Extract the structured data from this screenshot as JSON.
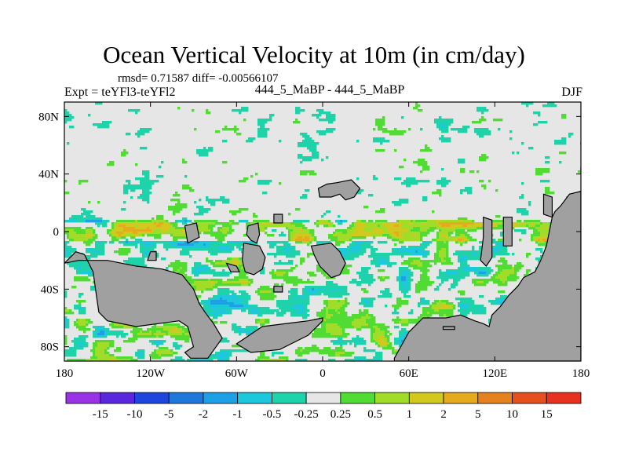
{
  "header": {
    "title": "Ocean Vertical Velocity at 10m (in cm/day)",
    "stats": "rmsd= 0.71587 diff= -0.00566107",
    "experiment": "Expt = teYFl3-teYFl2",
    "center_label": "444_5_MaBP - 444_5_MaBP",
    "season": "DJF"
  },
  "chart_data": {
    "type": "heatmap",
    "title": "Ocean Vertical Velocity at 10m (in cm/day)",
    "xlabel": "",
    "ylabel": "",
    "xlim": [
      -180,
      180
    ],
    "ylim": [
      -90,
      90
    ],
    "x_ticks": [
      {
        "value": -180,
        "label": "180"
      },
      {
        "value": -120,
        "label": "120W"
      },
      {
        "value": -60,
        "label": "60W"
      },
      {
        "value": 0,
        "label": "0"
      },
      {
        "value": 60,
        "label": "60E"
      },
      {
        "value": 120,
        "label": "120E"
      },
      {
        "value": 180,
        "label": "180"
      }
    ],
    "y_ticks": [
      {
        "value": 80,
        "label": "80N"
      },
      {
        "value": 40,
        "label": "40N"
      },
      {
        "value": 0,
        "label": "0"
      },
      {
        "value": -40,
        "label": "40S"
      },
      {
        "value": -80,
        "label": "80S"
      }
    ],
    "colorbar": {
      "colors": [
        "#9a32e6",
        "#5a28dc",
        "#1e46dc",
        "#1e78dc",
        "#1ea0e6",
        "#1ec8dc",
        "#1ed2aa",
        "#e6e6e6",
        "#50dc32",
        "#a0dc28",
        "#d2c81e",
        "#e6aa1e",
        "#e6821e",
        "#e6501e",
        "#e6321e"
      ],
      "labels": [
        "-15",
        "-10",
        "-5",
        "-2",
        "-1",
        "-0.5",
        "-0.25",
        "0.25",
        "0.5",
        "1",
        "2",
        "5",
        "10",
        "15"
      ]
    },
    "land_color": "#a0a0a0",
    "ocean_background": "#e6e6e6"
  }
}
